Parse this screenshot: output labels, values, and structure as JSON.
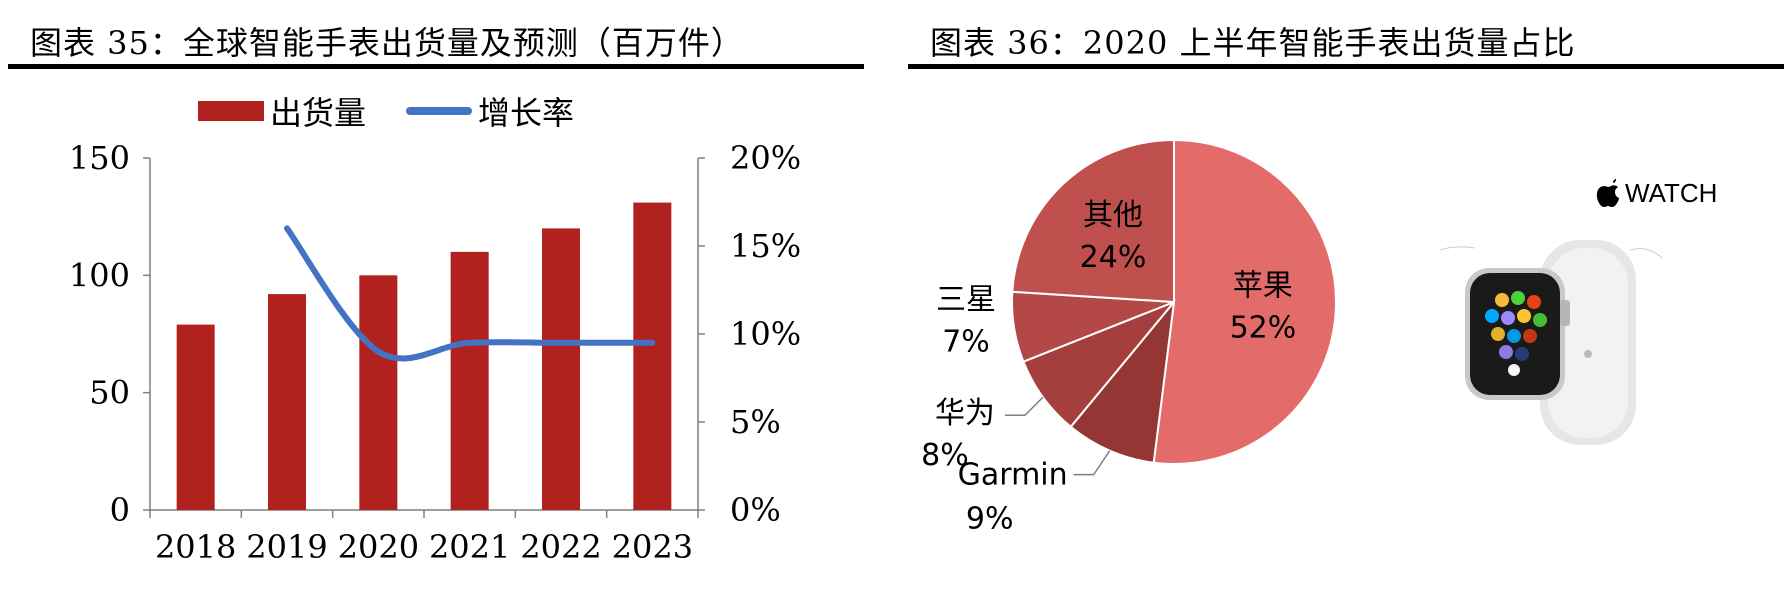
{
  "left": {
    "title": "图表 35：全球智能手表出货量及预测（百万件）",
    "legend": {
      "bar": "出货量",
      "line": "增长率"
    }
  },
  "right": {
    "title": "图表 36：2020 上半年智能手表出货量占比",
    "watch_logo_text": "WATCH",
    "watch_logo_icon": "apple-logo-icon"
  },
  "colors": {
    "bar": "#b1211d",
    "line": "#4472c4"
  },
  "chart_data": [
    {
      "type": "bar",
      "title": "图表 35：全球智能手表出货量及预测（百万件）",
      "categories": [
        "2018",
        "2019",
        "2020",
        "2021",
        "2022",
        "2023"
      ],
      "series": [
        {
          "name": "出货量",
          "type": "bar",
          "axis": "left",
          "values": [
            79,
            92,
            100,
            110,
            120,
            131
          ]
        },
        {
          "name": "增长率",
          "type": "line",
          "axis": "right",
          "values": [
            null,
            0.16,
            0.09,
            0.095,
            0.095,
            0.095
          ]
        }
      ],
      "ylim": [
        0,
        150
      ],
      "yticks": [
        "0",
        "50",
        "100",
        "150"
      ],
      "ylim_right": [
        0,
        0.2
      ],
      "yticks_right": [
        "0%",
        "5%",
        "10%",
        "15%",
        "20%"
      ],
      "legend": "top",
      "grid": false
    },
    {
      "type": "pie",
      "title": "图表 36：2020 上半年智能手表出货量占比",
      "slices": [
        {
          "label": "苹果",
          "value": 52,
          "text": "52%",
          "color": "#e36c6b"
        },
        {
          "label": "Garmin",
          "value": 9,
          "text": "9%",
          "color": "#943634"
        },
        {
          "label": "华为",
          "value": 8,
          "text": "8%",
          "color": "#a53f3d"
        },
        {
          "label": "三星",
          "value": 7,
          "text": "7%",
          "color": "#b44847"
        },
        {
          "label": "其他",
          "value": 24,
          "text": "24%",
          "color": "#c0504d"
        }
      ]
    }
  ]
}
